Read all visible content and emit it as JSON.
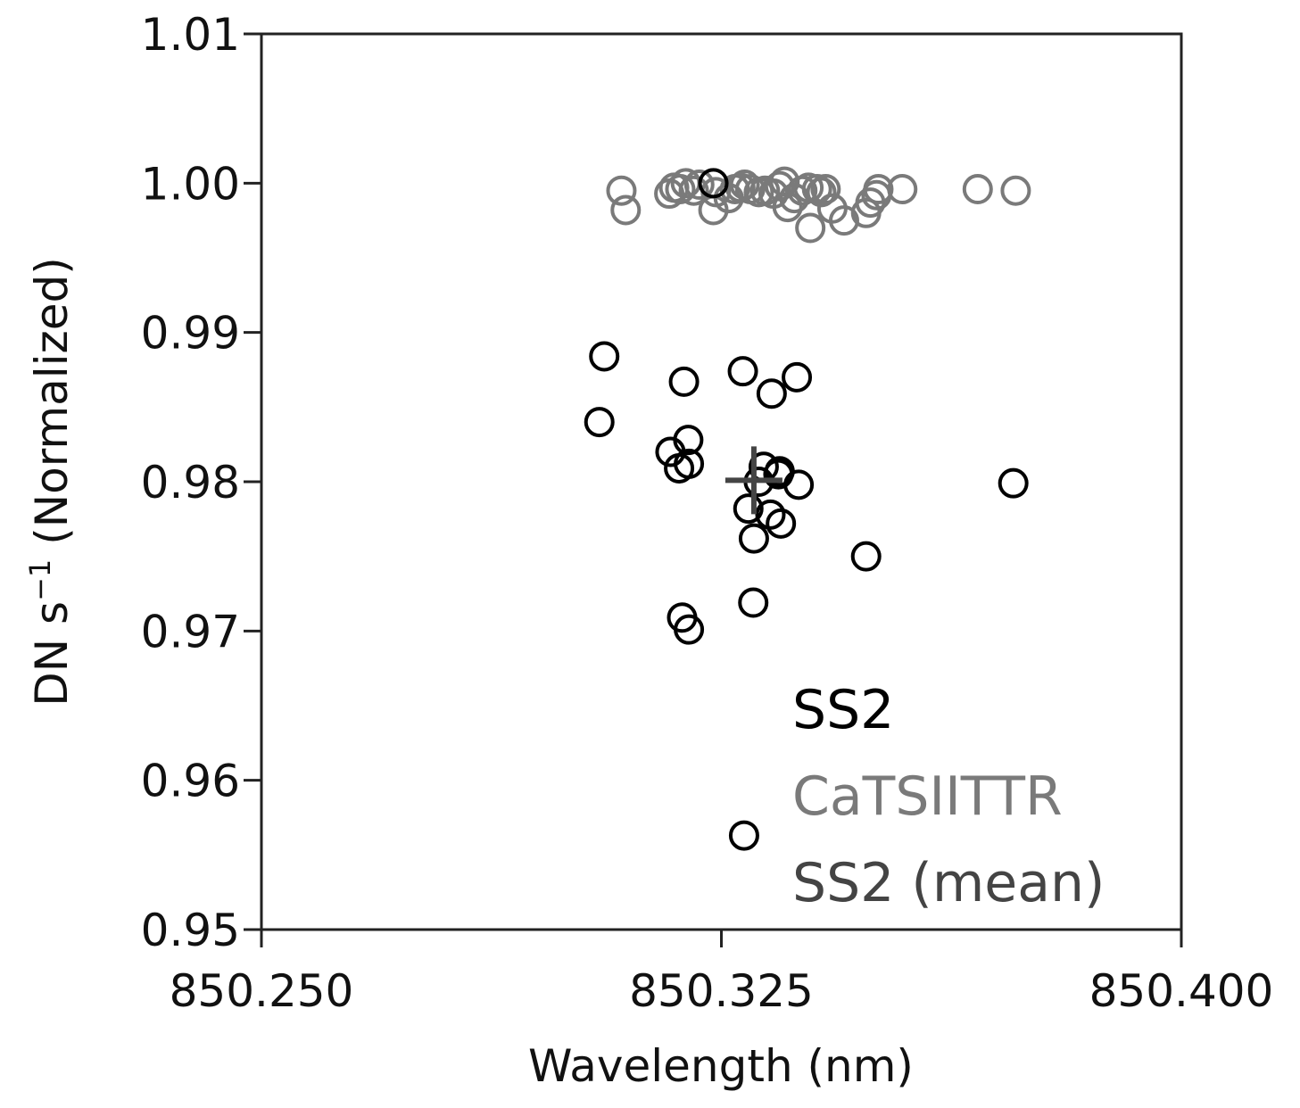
{
  "chart_data": {
    "type": "scatter",
    "title": "",
    "xlabel": "Wavelength (nm)",
    "ylabel_main": "DN s",
    "ylabel_sup": "−1",
    "ylabel_tail": " (Normalized)",
    "xlim": [
      850.25,
      850.4
    ],
    "ylim": [
      0.95,
      1.01
    ],
    "xticks": [
      850.25,
      850.325,
      850.4
    ],
    "xtick_labels": [
      "850.250",
      "850.325",
      "850.400"
    ],
    "yticks": [
      0.95,
      0.96,
      0.97,
      0.98,
      0.99,
      1.0,
      1.01
    ],
    "ytick_labels": [
      "0.95",
      "0.96",
      "0.97",
      "0.98",
      "0.99",
      "1.00",
      "1.01"
    ],
    "grid": false,
    "legend_position": "bottom-right",
    "colors": {
      "ss2": "#000000",
      "catsittr": "#7a7a7a",
      "mean": "#444444"
    },
    "series": [
      {
        "name": "SS2",
        "marker": "open-circle",
        "color": "#000000",
        "points": [
          [
            850.3059,
            0.9884
          ],
          [
            850.3051,
            0.984
          ],
          [
            850.3189,
            0.9867
          ],
          [
            850.3181,
            0.9809
          ],
          [
            850.3167,
            0.982
          ],
          [
            850.3196,
            0.9828
          ],
          [
            850.3197,
            0.9812
          ],
          [
            850.3186,
            0.9709
          ],
          [
            850.3197,
            0.9701
          ],
          [
            850.3285,
            0.9874
          ],
          [
            850.3294,
            0.9782
          ],
          [
            850.3303,
            0.9762
          ],
          [
            850.3302,
            0.9719
          ],
          [
            850.3287,
            0.9563
          ],
          [
            850.3311,
            0.98
          ],
          [
            850.3319,
            0.981
          ],
          [
            850.3332,
            0.9859
          ],
          [
            850.333,
            0.9778
          ],
          [
            850.3345,
            0.9807
          ],
          [
            850.3347,
            0.9772
          ],
          [
            850.3343,
            0.9805
          ],
          [
            850.3373,
            0.987
          ],
          [
            850.3376,
            0.9798
          ],
          [
            850.3486,
            0.975
          ],
          [
            850.3726,
            0.9799
          ],
          [
            850.3237,
            1.0
          ]
        ]
      },
      {
        "name": "CaTSIITTR",
        "marker": "open-circle",
        "color": "#7a7a7a",
        "points": [
          [
            850.3087,
            0.9995
          ],
          [
            850.3094,
            0.9982
          ],
          [
            850.3165,
            0.9993
          ],
          [
            850.3173,
            0.9997
          ],
          [
            850.3183,
            0.9996
          ],
          [
            850.3192,
            1.0
          ],
          [
            850.3205,
            0.9995
          ],
          [
            850.3214,
            0.9999
          ],
          [
            850.3237,
            0.9982
          ],
          [
            850.3241,
            0.9994
          ],
          [
            850.3262,
            0.999
          ],
          [
            850.3272,
            0.9996
          ],
          [
            850.3281,
            0.9997
          ],
          [
            850.3288,
            0.9999
          ],
          [
            850.3297,
            0.9996
          ],
          [
            850.3311,
            0.9994
          ],
          [
            850.3321,
            0.9995
          ],
          [
            850.3335,
            0.9993
          ],
          [
            850.3345,
            0.9998
          ],
          [
            850.3353,
            1.0001
          ],
          [
            850.3358,
            0.9984
          ],
          [
            850.3369,
            0.999
          ],
          [
            850.3382,
            0.9995
          ],
          [
            850.3392,
            0.9997
          ],
          [
            850.3395,
            0.997
          ],
          [
            850.3406,
            0.9996
          ],
          [
            850.3413,
            0.9994
          ],
          [
            850.342,
            0.9996
          ],
          [
            850.3431,
            0.9983
          ],
          [
            850.345,
            0.9975
          ],
          [
            850.3486,
            0.998
          ],
          [
            850.3493,
            0.9987
          ],
          [
            850.3503,
            0.9992
          ],
          [
            850.3506,
            0.9996
          ],
          [
            850.3545,
            0.9996
          ],
          [
            850.3668,
            0.9996
          ],
          [
            850.373,
            0.9995
          ]
        ]
      },
      {
        "name": "SS2 (mean)",
        "marker": "plus",
        "color": "#444444",
        "points": [
          [
            850.3303,
            0.9801
          ]
        ]
      }
    ]
  }
}
